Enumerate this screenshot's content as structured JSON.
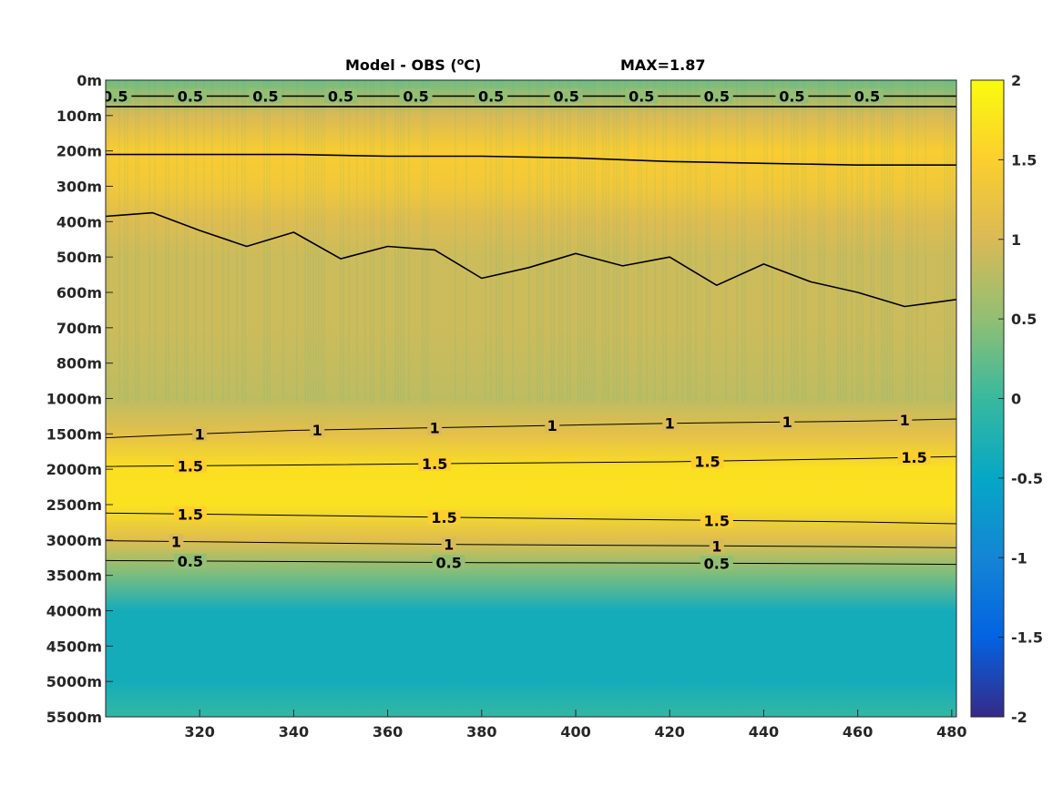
{
  "chart_data": {
    "type": "heatmap",
    "title": {
      "main": "Model - OBS (",
      "unit_sup": "o",
      "unit_end": "C)",
      "max_label": "MAX=1.87"
    },
    "xlabel": "",
    "ylabel": "",
    "x_range": [
      300,
      481
    ],
    "x_ticks": [
      320,
      340,
      360,
      380,
      400,
      420,
      440,
      460,
      480
    ],
    "y_ticks": [
      "0m",
      "100m",
      "200m",
      "300m",
      "400m",
      "500m",
      "600m",
      "700m",
      "800m",
      "1000m",
      "1500m",
      "2000m",
      "2500m",
      "3000m",
      "3500m",
      "4000m",
      "4500m",
      "5000m",
      "5500m"
    ],
    "y_scale": "piecewise: 0-800m upper section, 1000-5500m lower section (each labelled depth at an equal step)",
    "colorbar": {
      "range": [
        -2,
        2
      ],
      "ticks": [
        "2",
        "1.5",
        "1",
        "0.5",
        "0",
        "-0.5",
        "-1",
        "-1.5",
        "-2"
      ],
      "colormap": "parula",
      "stops": [
        "#352a87",
        "#0363e1",
        "#1485d4",
        "#06a7c6",
        "#38b99e",
        "#92bf73",
        "#d9ba56",
        "#fcce2e",
        "#f9fb0e"
      ]
    },
    "field_profile": [
      {
        "depth": "0m",
        "value": 0.3
      },
      {
        "depth": "100m",
        "value": 1.0
      },
      {
        "depth": "200m",
        "value": 1.45
      },
      {
        "depth": "300m",
        "value": 1.35
      },
      {
        "depth": "400m",
        "value": 1.05
      },
      {
        "depth": "500m",
        "value": 0.9
      },
      {
        "depth": "700m",
        "value": 0.9
      },
      {
        "depth": "1000m",
        "value": 0.8
      },
      {
        "depth": "1500m",
        "value": 1.15
      },
      {
        "depth": "2000m",
        "value": 1.7
      },
      {
        "depth": "2500m",
        "value": 1.72
      },
      {
        "depth": "3000m",
        "value": 1.1
      },
      {
        "depth": "3500m",
        "value": 0.35
      },
      {
        "depth": "4000m",
        "value": -0.35
      },
      {
        "depth": "5000m",
        "value": -0.35
      },
      {
        "depth": "5500m",
        "value": -0.05
      }
    ],
    "contours": [
      {
        "level": "1",
        "label": "1",
        "x": [
          300,
          320,
          340,
          360,
          380,
          400,
          420,
          440,
          460,
          481
        ],
        "y": [
          "1555m",
          "1500m",
          "1450m",
          "1425m",
          "1400m",
          "1375m",
          "1350m",
          "1335m",
          "1320m",
          "1290m"
        ]
      },
      {
        "level": "1.5",
        "label": "1.5",
        "x": [
          300,
          340,
          380,
          420,
          460,
          481
        ],
        "y": [
          "1960m",
          "1940m",
          "1915m",
          "1895m",
          "1850m",
          "1820m"
        ]
      },
      {
        "level": "1.5",
        "label": "1.5",
        "x": [
          300,
          340,
          380,
          420,
          460,
          481
        ],
        "y": [
          "2620m",
          "2650m",
          "2685m",
          "2715m",
          "2745m",
          "2770m"
        ]
      },
      {
        "level": "1",
        "label": "1",
        "x": [
          300,
          340,
          380,
          420,
          460,
          481
        ],
        "y": [
          "3010m",
          "3040m",
          "3065m",
          "3080m",
          "3095m",
          "3110m"
        ]
      },
      {
        "level": "0.5",
        "label": "0.5",
        "x": [
          300,
          340,
          380,
          420,
          460,
          481
        ],
        "y": [
          "3290m",
          "3305m",
          "3320m",
          "3325m",
          "3335m",
          "3345m"
        ]
      },
      {
        "level": "1",
        "label": "1",
        "x": [
          300,
          310,
          320,
          330,
          340,
          350,
          360,
          370,
          380,
          390,
          400,
          410,
          420,
          430,
          440,
          450,
          460,
          470,
          481
        ],
        "y": [
          "385m",
          "375m",
          "425m",
          "470m",
          "430m",
          "505m",
          "470m",
          "480m",
          "560m",
          "530m",
          "490m",
          "525m",
          "500m",
          "580m",
          "520m",
          "570m",
          "600m",
          "640m",
          "620m"
        ]
      },
      {
        "level": "0.5",
        "label": "0.5",
        "x": [
          300,
          320,
          340,
          360,
          380,
          400,
          420,
          440,
          460,
          481
        ],
        "y": [
          "45m",
          "45m",
          "45m",
          "45m",
          "45m",
          "45m",
          "45m",
          "45m",
          "45m",
          "45m"
        ]
      },
      {
        "level": "1",
        "label": "1",
        "x": [
          300,
          320,
          340,
          360,
          380,
          400,
          420,
          440,
          460,
          481
        ],
        "y": [
          "75m",
          "75m",
          "75m",
          "75m",
          "75m",
          "75m",
          "75m",
          "75m",
          "75m",
          "75m"
        ]
      },
      {
        "level": "1.5",
        "label": "1.5",
        "x": [
          300,
          320,
          340,
          360,
          380,
          400,
          420,
          440,
          460,
          481
        ],
        "y": [
          "210m",
          "210m",
          "210m",
          "215m",
          "215m",
          "220m",
          "230m",
          "235m",
          "240m",
          "240m"
        ]
      }
    ]
  }
}
